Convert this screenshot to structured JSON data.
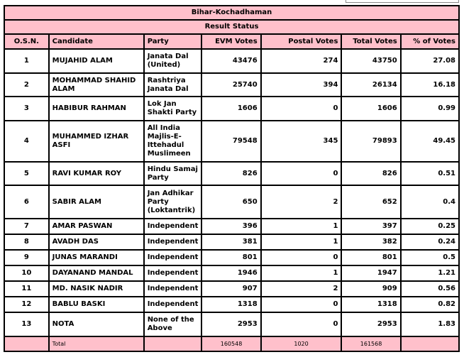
{
  "title": "Bihar-Kochadhaman",
  "subtitle": "Result Status",
  "columns": [
    "O.S.N.",
    "Candidate",
    "Party",
    "EVM Votes",
    "Postal Votes",
    "Total Votes",
    "% of Votes"
  ],
  "rows": [
    {
      "osn": "1",
      "candidate": "MUJAHID ALAM",
      "party": "Janata Dal (United)",
      "evm": "43476",
      "postal": "274",
      "total": "43750",
      "pct": "27.08"
    },
    {
      "osn": "2",
      "candidate": "MOHAMMAD SHAHID ALAM",
      "party": "Rashtriya Janata Dal",
      "evm": "25740",
      "postal": "394",
      "total": "26134",
      "pct": "16.18"
    },
    {
      "osn": "3",
      "candidate": "HABIBUR RAHMAN",
      "party": "Lok Jan Shakti Party",
      "evm": "1606",
      "postal": "0",
      "total": "1606",
      "pct": "0.99"
    },
    {
      "osn": "4",
      "candidate": "MUHAMMED IZHAR ASFI",
      "party": "All India Majlis-E-Ittehadul Muslimeen",
      "evm": "79548",
      "postal": "345",
      "total": "79893",
      "pct": "49.45"
    },
    {
      "osn": "5",
      "candidate": "RAVI KUMAR ROY",
      "party": "Hindu Samaj Party",
      "evm": "826",
      "postal": "0",
      "total": "826",
      "pct": "0.51"
    },
    {
      "osn": "6",
      "candidate": "SABIR ALAM",
      "party": "Jan Adhikar Party (Loktantrik)",
      "evm": "650",
      "postal": "2",
      "total": "652",
      "pct": "0.4"
    },
    {
      "osn": "7",
      "candidate": "AMAR PASWAN",
      "party": "Independent",
      "evm": "396",
      "postal": "1",
      "total": "397",
      "pct": "0.25"
    },
    {
      "osn": "8",
      "candidate": "AVADH DAS",
      "party": "Independent",
      "evm": "381",
      "postal": "1",
      "total": "382",
      "pct": "0.24"
    },
    {
      "osn": "9",
      "candidate": "JUNAS MARANDI",
      "party": "Independent",
      "evm": "801",
      "postal": "0",
      "total": "801",
      "pct": "0.5"
    },
    {
      "osn": "10",
      "candidate": "DAYANAND MANDAL",
      "party": "Independent",
      "evm": "1946",
      "postal": "1",
      "total": "1947",
      "pct": "1.21"
    },
    {
      "osn": "11",
      "candidate": "MD. NASIK NADIR",
      "party": "Independent",
      "evm": "907",
      "postal": "2",
      "total": "909",
      "pct": "0.56"
    },
    {
      "osn": "12",
      "candidate": "BABLU BASKI",
      "party": "Independent",
      "evm": "1318",
      "postal": "0",
      "total": "1318",
      "pct": "0.82"
    },
    {
      "osn": "13",
      "candidate": "NOTA",
      "party": "None of the Above",
      "evm": "2953",
      "postal": "0",
      "total": "2953",
      "pct": "1.83"
    }
  ],
  "totals": {
    "label": "Total",
    "evm": "160548",
    "postal": "1020",
    "total": "161568"
  },
  "colors": {
    "header_bg": "#FFC0CB"
  }
}
